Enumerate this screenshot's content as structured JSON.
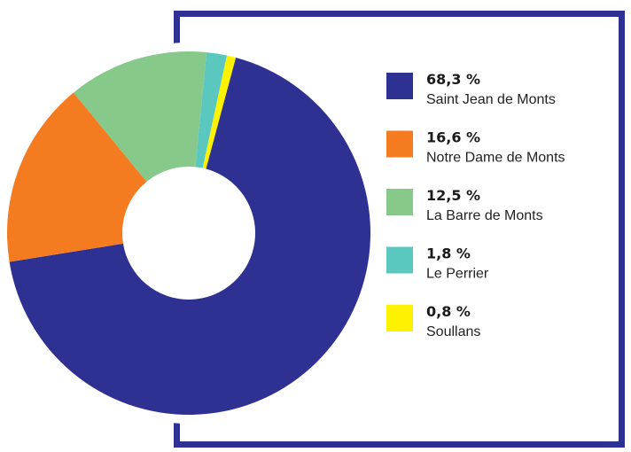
{
  "chart_data": {
    "type": "pie",
    "categories": [
      "Saint Jean de Monts",
      "Notre Dame de Monts",
      "La Barre de Monts",
      "Le Perrier",
      "Soullans"
    ],
    "values": [
      68.3,
      16.6,
      12.5,
      1.8,
      0.8
    ],
    "value_labels": [
      "68,3 %",
      "16,6 %",
      "12,5 %",
      "1,8 %",
      "0,8 %"
    ],
    "colors": [
      "#2e3192",
      "#f47b20",
      "#86c98a",
      "#5bc8c0",
      "#fff200"
    ]
  }
}
